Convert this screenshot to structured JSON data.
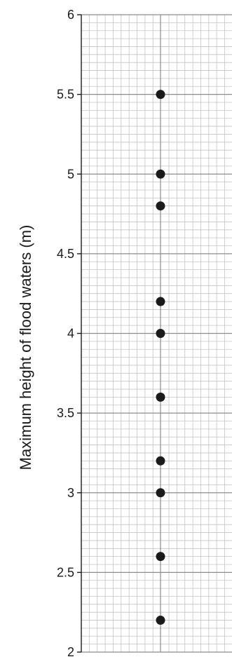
{
  "chart_data": {
    "type": "scatter",
    "ylabel": "Maximum height of flood waters (m)",
    "xlabel": "",
    "title": "",
    "ylim": [
      2,
      6
    ],
    "yticks": [
      "2",
      "2.5",
      "3",
      "3.5",
      "4",
      "4.5",
      "5",
      "5.5",
      "6"
    ],
    "values": [
      5.5,
      5.0,
      4.8,
      4.2,
      4.0,
      3.6,
      3.2,
      3.0,
      2.6,
      2.2
    ],
    "grid": true,
    "minor_grid_per_major": 10,
    "marker_color": "#1a1a1a",
    "major_grid_color": "#8c8c8c",
    "minor_grid_color": "#c4c4c4"
  }
}
